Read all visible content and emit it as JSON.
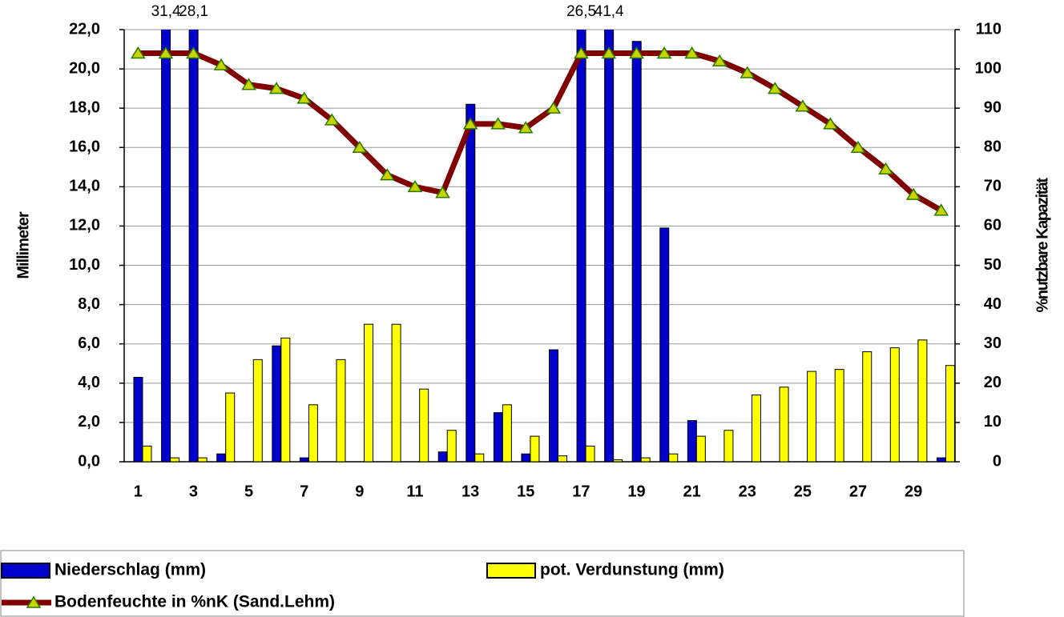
{
  "chart_data": {
    "type": "bar-line",
    "y_label": "Millimeter",
    "y2_label": "%nutzbare Kapazität",
    "categories": [
      1,
      null,
      3,
      null,
      5,
      null,
      7,
      null,
      9,
      null,
      11,
      null,
      13,
      null,
      15,
      null,
      17,
      null,
      19,
      null,
      21,
      null,
      23,
      null,
      25,
      null,
      27,
      null,
      29,
      null
    ],
    "ylim": [
      0,
      22
    ],
    "yticks": [
      {
        "value": 0,
        "label": "0,0"
      },
      {
        "value": 2,
        "label": "2,0"
      },
      {
        "value": 4,
        "label": "4,0"
      },
      {
        "value": 6,
        "label": "6,0"
      },
      {
        "value": 8,
        "label": "8,0"
      },
      {
        "value": 10,
        "label": "10,0"
      },
      {
        "value": 12,
        "label": "12,0"
      },
      {
        "value": 14,
        "label": "14,0"
      },
      {
        "value": 16,
        "label": "16,0"
      },
      {
        "value": 18,
        "label": "18,0"
      },
      {
        "value": 20,
        "label": "20,0"
      },
      {
        "value": 22,
        "label": "22,0"
      }
    ],
    "y2lim": [
      0,
      110
    ],
    "y2ticks": [
      0,
      10,
      20,
      30,
      40,
      50,
      60,
      70,
      80,
      90,
      100,
      110
    ],
    "grid": true,
    "legend": "bottom",
    "series": [
      {
        "name": "Niederschlag (mm)",
        "type": "bar",
        "color": "#0000cc",
        "values": [
          4.3,
          31.4,
          28.1,
          0.4,
          0,
          5.9,
          0.2,
          0,
          0,
          0,
          0,
          0.5,
          18.2,
          2.5,
          0.4,
          5.7,
          26.5,
          41.4,
          21.4,
          11.9,
          2.1,
          0,
          0,
          0,
          0,
          0,
          0,
          0,
          0,
          0.2
        ],
        "value_labels": [
          null,
          "31,4",
          "28,1",
          null,
          null,
          null,
          null,
          null,
          null,
          null,
          null,
          null,
          null,
          null,
          null,
          null,
          "26,5",
          "41,4",
          null,
          null,
          null,
          null,
          null,
          null,
          null,
          null,
          null,
          null,
          null,
          null
        ]
      },
      {
        "name": "pot. Verdunstung (mm)",
        "type": "bar",
        "color": "#ffff00",
        "values": [
          0.8,
          0.2,
          0.2,
          3.5,
          5.2,
          6.3,
          2.9,
          5.2,
          7.0,
          7.0,
          3.7,
          1.6,
          0.4,
          2.9,
          1.3,
          0.3,
          0.8,
          0.1,
          0.2,
          0.4,
          1.3,
          1.6,
          3.4,
          3.8,
          4.6,
          4.7,
          5.6,
          5.8,
          6.2,
          4.9
        ]
      },
      {
        "name": "Bodenfeuchte in %nK (Sand.Lehm)",
        "type": "line",
        "axis": "y2",
        "color": "#800000",
        "marker_color": "#c8d400",
        "values": [
          104,
          104,
          104,
          101,
          96,
          95,
          92.5,
          87,
          80,
          73,
          70,
          68.5,
          86,
          86,
          85,
          90,
          104,
          104,
          104,
          104,
          104,
          102,
          99,
          95,
          90.5,
          86,
          80,
          74.5,
          68,
          64
        ]
      }
    ]
  }
}
